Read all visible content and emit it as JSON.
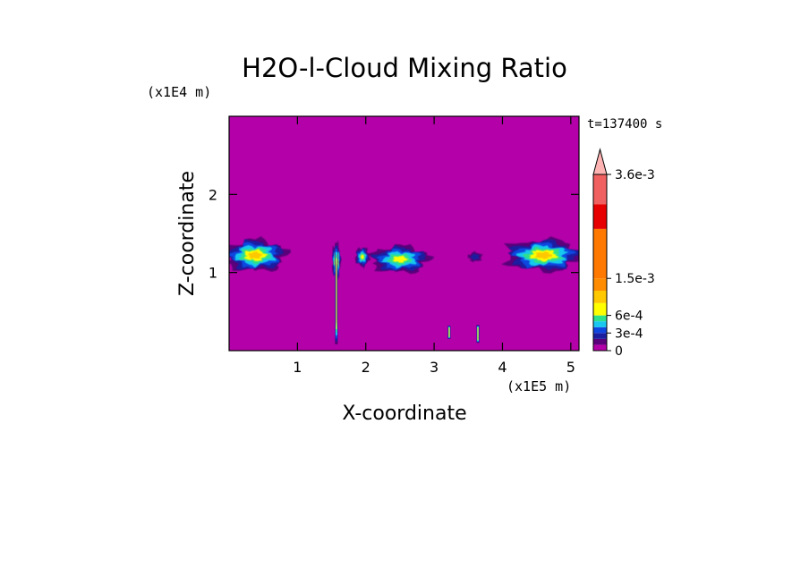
{
  "chart_data": {
    "type": "heatmap",
    "title": "H2O-l-Cloud Mixing Ratio",
    "xlabel": "X-coordinate",
    "ylabel": "Z-coordinate",
    "x_unit": "(x1E5 m)",
    "y_unit": "(x1E4 m)",
    "time_label": "t=137400 s",
    "xlim": [
      0,
      5.12
    ],
    "ylim": [
      0,
      3.0
    ],
    "x_ticks": [
      "1",
      "2",
      "3",
      "4",
      "5"
    ],
    "x_tick_values": [
      1,
      2,
      3,
      4,
      5
    ],
    "y_ticks": [
      "1",
      "2"
    ],
    "y_tick_values": [
      1,
      2
    ],
    "background_value": 0,
    "colorbar": {
      "levels": [
        {
          "value": 0,
          "color": "#b400a8"
        },
        {
          "value": 0.0001,
          "color": "#5a007a"
        },
        {
          "value": 0.0002,
          "color": "#1c1ea0"
        },
        {
          "value": 0.0003,
          "color": "#0f46e0"
        },
        {
          "value": 0.0004,
          "color": "#18c8f0"
        },
        {
          "value": 0.0005,
          "color": "#2ee08c"
        },
        {
          "value": 0.0006,
          "color": "#ffff00"
        },
        {
          "value": 0.0009,
          "color": "#ffc800"
        },
        {
          "value": 0.0012,
          "color": "#ff8c00"
        },
        {
          "value": 0.0015,
          "color": "#ff7800"
        },
        {
          "value": 0.0025,
          "color": "#e60000"
        },
        {
          "value": 0.003,
          "color": "#f06060"
        },
        {
          "value": 0.0036,
          "color": "#ffb4b4"
        }
      ],
      "tick_labels": [
        "0",
        "3e-4",
        "6e-4",
        "1.5e-3",
        "3.6e-3"
      ],
      "tick_values": [
        0,
        0.0003,
        0.0006,
        0.0015,
        0.0036
      ],
      "extend": "max"
    },
    "cloud_regions": [
      {
        "x_center": 0.38,
        "z_center": 1.22,
        "x_halfwidth": 0.45,
        "z_halfwidth": 0.2,
        "max_value": 0.0009
      },
      {
        "x_center": 1.57,
        "z_center": 1.15,
        "x_halfwidth": 0.06,
        "z_halfwidth": 0.22,
        "max_value": 0.0012
      },
      {
        "x_center": 1.95,
        "z_center": 1.2,
        "x_halfwidth": 0.1,
        "z_halfwidth": 0.12,
        "max_value": 0.0006
      },
      {
        "x_center": 2.5,
        "z_center": 1.17,
        "x_halfwidth": 0.42,
        "z_halfwidth": 0.17,
        "max_value": 0.0007
      },
      {
        "x_center": 3.6,
        "z_center": 1.2,
        "x_halfwidth": 0.1,
        "z_halfwidth": 0.06,
        "max_value": 0.0002
      },
      {
        "x_center": 4.6,
        "z_center": 1.22,
        "x_halfwidth": 0.55,
        "z_halfwidth": 0.2,
        "max_value": 0.0009
      }
    ],
    "vertical_streaks": [
      {
        "x": 1.57,
        "z_bottom": 0.08,
        "z_top": 1.38,
        "max_value": 0.0015
      },
      {
        "x": 3.22,
        "z_bottom": 0.15,
        "z_top": 0.32,
        "max_value": 0.0009
      },
      {
        "x": 3.64,
        "z_bottom": 0.1,
        "z_top": 0.33,
        "max_value": 0.0009
      }
    ]
  }
}
